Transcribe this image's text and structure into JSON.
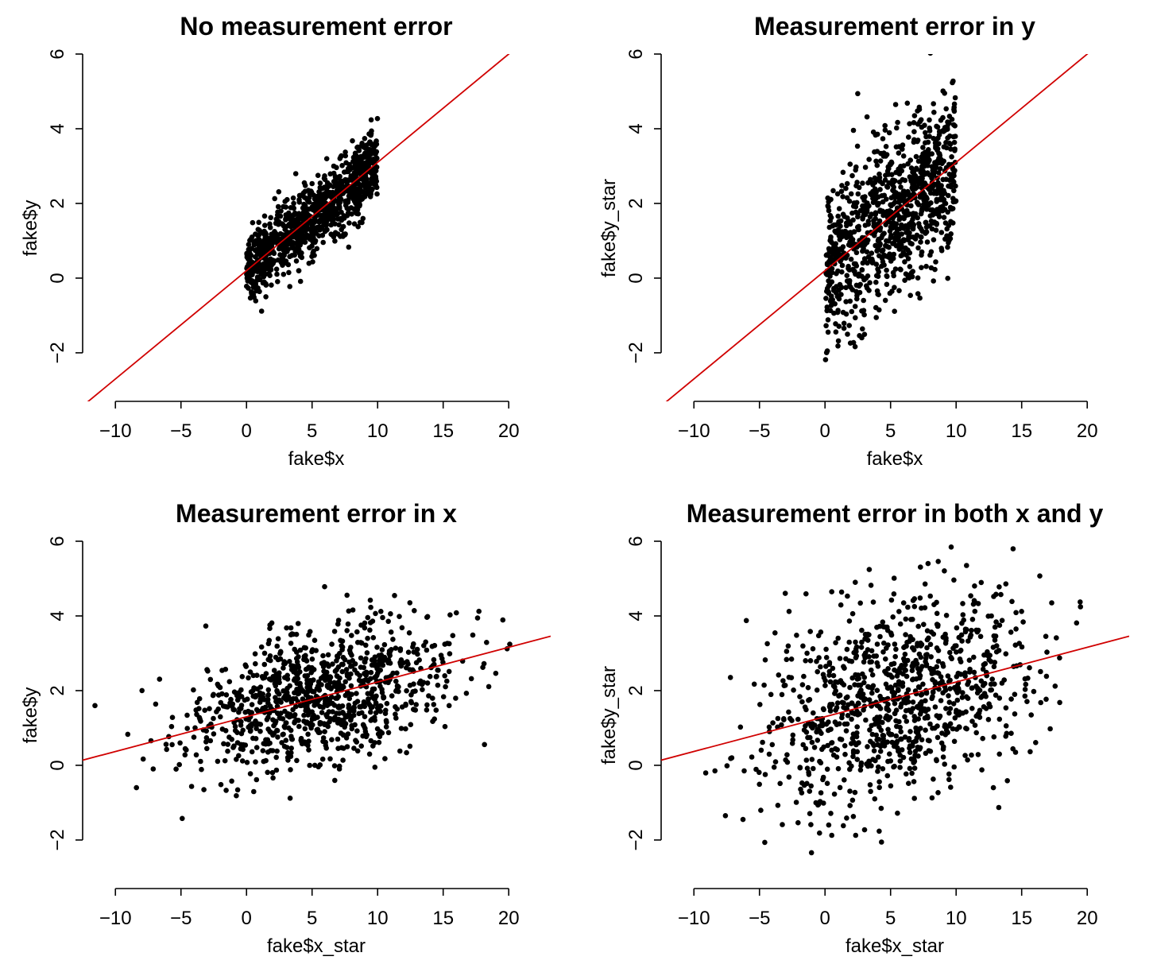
{
  "figure": {
    "background": "#ffffff",
    "point_color": "#000000",
    "line_color": "#d00000"
  },
  "chart_data": [
    {
      "type": "scatter",
      "title": "No measurement error",
      "xlabel": "fake$x",
      "ylabel": "fake$y",
      "xlim": [
        -12.5,
        23.2
      ],
      "ylim": [
        -3.3,
        6.0
      ],
      "x_ticks": [
        -10,
        -5,
        0,
        5,
        10,
        15,
        20
      ],
      "x_tick_labels": [
        "−10",
        "−5",
        "0",
        "5",
        "10",
        "15",
        "20"
      ],
      "y_ticks": [
        -2,
        0,
        2,
        4,
        6
      ],
      "y_tick_labels": [
        "−2",
        "0",
        "2",
        "4",
        "6"
      ],
      "fit_line": {
        "intercept": 0.2,
        "slope": 0.29
      },
      "points": {
        "n": 1000,
        "x_dist": "uniform",
        "x_min": 0,
        "x_max": 10,
        "y_noise_sd": 0.5,
        "y_from": "fit_line"
      }
    },
    {
      "type": "scatter",
      "title": "Measurement error in y",
      "xlabel": "fake$x",
      "ylabel": "fake$y_star",
      "xlim": [
        -12.5,
        23.2
      ],
      "ylim": [
        -3.3,
        6.0
      ],
      "x_ticks": [
        -10,
        -5,
        0,
        5,
        10,
        15,
        20
      ],
      "x_tick_labels": [
        "−10",
        "−5",
        "0",
        "5",
        "10",
        "15",
        "20"
      ],
      "y_ticks": [
        -2,
        0,
        2,
        4,
        6
      ],
      "y_tick_labels": [
        "−2",
        "0",
        "2",
        "4",
        "6"
      ],
      "fit_line": {
        "intercept": 0.2,
        "slope": 0.29
      },
      "points": {
        "n": 1000,
        "x_dist": "uniform",
        "x_min": 0,
        "x_max": 10,
        "y_noise_sd": 1.1,
        "y_from": "fit_line"
      }
    },
    {
      "type": "scatter",
      "title": "Measurement error in x",
      "xlabel": "fake$x_star",
      "ylabel": "fake$y",
      "xlim": [
        -12.5,
        23.2
      ],
      "ylim": [
        -3.3,
        6.0
      ],
      "x_ticks": [
        -10,
        -5,
        0,
        5,
        10,
        15,
        20
      ],
      "x_tick_labels": [
        "−10",
        "−5",
        "0",
        "5",
        "10",
        "15",
        "20"
      ],
      "y_ticks": [
        -2,
        0,
        2,
        4,
        6
      ],
      "y_tick_labels": [
        "−2",
        "0",
        "2",
        "4",
        "6"
      ],
      "fit_line": {
        "intercept": 1.3,
        "slope": 0.093
      },
      "points": {
        "n": 1000,
        "x_dist": "normal",
        "x_mean": 5.5,
        "x_sd": 5.0,
        "y_noise_sd": 0.9,
        "y_from": "fit_line"
      }
    },
    {
      "type": "scatter",
      "title": "Measurement error in both x and y",
      "xlabel": "fake$x_star",
      "ylabel": "fake$y_star",
      "xlim": [
        -12.5,
        23.2
      ],
      "ylim": [
        -3.3,
        6.0
      ],
      "x_ticks": [
        -10,
        -5,
        0,
        5,
        10,
        15,
        20
      ],
      "x_tick_labels": [
        "−10",
        "−5",
        "0",
        "5",
        "10",
        "15",
        "20"
      ],
      "y_ticks": [
        -2,
        0,
        2,
        4,
        6
      ],
      "y_tick_labels": [
        "−2",
        "0",
        "2",
        "4",
        "6"
      ],
      "fit_line": {
        "intercept": 1.3,
        "slope": 0.093
      },
      "points": {
        "n": 1000,
        "x_dist": "normal",
        "x_mean": 5.5,
        "x_sd": 5.0,
        "y_noise_sd": 1.35,
        "y_from": "fit_line"
      }
    }
  ]
}
